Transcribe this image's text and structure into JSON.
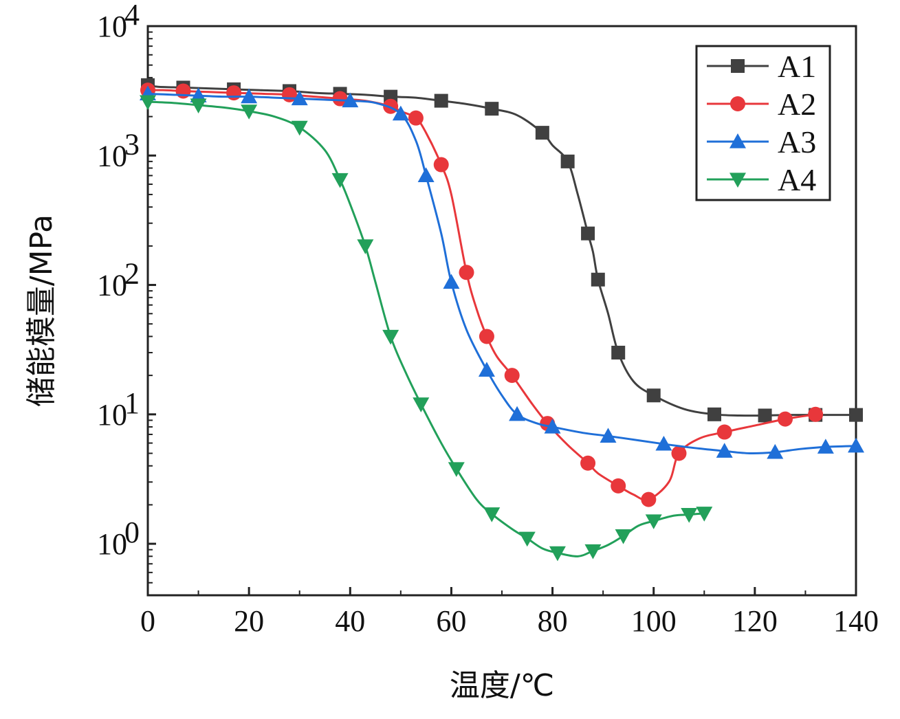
{
  "chart_data": {
    "type": "line",
    "title": "",
    "xlabel": "温度/℃",
    "ylabel": "储能模量/MPa",
    "y_scale": "log",
    "xlim": [
      0,
      140
    ],
    "ylim": [
      0.4,
      10000
    ],
    "x_ticks": [
      {
        "value": 0,
        "label": "0"
      },
      {
        "value": 20,
        "label": "20"
      },
      {
        "value": 40,
        "label": "40"
      },
      {
        "value": 60,
        "label": "60"
      },
      {
        "value": 80,
        "label": "80"
      },
      {
        "value": 100,
        "label": "100"
      },
      {
        "value": 120,
        "label": "120"
      },
      {
        "value": 140,
        "label": "140"
      }
    ],
    "y_ticks": [
      {
        "value": 1,
        "base": "10",
        "exp": "0"
      },
      {
        "value": 10,
        "base": "10",
        "exp": "1"
      },
      {
        "value": 100,
        "base": "10",
        "exp": "2"
      },
      {
        "value": 1000,
        "base": "10",
        "exp": "3"
      },
      {
        "value": 10000,
        "base": "10",
        "exp": "4"
      }
    ],
    "grid": false,
    "legend_position": "top-right",
    "series": [
      {
        "name": "A1",
        "color": "#404040",
        "marker": "square",
        "x": [
          0,
          2,
          7,
          12,
          17,
          22,
          28,
          33,
          38,
          43,
          48,
          53,
          58,
          63,
          68,
          73,
          78,
          80,
          83,
          85,
          87,
          88,
          89,
          91,
          93,
          96,
          100,
          106,
          112,
          117,
          122,
          127,
          132,
          137,
          140
        ],
        "y": [
          3500,
          3400,
          3350,
          3300,
          3250,
          3200,
          3150,
          3050,
          3000,
          2950,
          2850,
          2800,
          2650,
          2500,
          2300,
          2050,
          1500,
          1200,
          900,
          500,
          250,
          180,
          110,
          60,
          30,
          18,
          14,
          11,
          10,
          9.8,
          9.8,
          9.9,
          9.9,
          9.9,
          9.9
        ]
      },
      {
        "name": "A2",
        "color": "#e8373b",
        "marker": "circle",
        "x": [
          0,
          3,
          7,
          12,
          17,
          23,
          28,
          33,
          38,
          43,
          48,
          50,
          53,
          55,
          58,
          60,
          63,
          65,
          67,
          69,
          72,
          76,
          79,
          83,
          87,
          89,
          93,
          96,
          99,
          103,
          105,
          109,
          114,
          120,
          126,
          132
        ],
        "y": [
          3200,
          3200,
          3150,
          3100,
          3050,
          3000,
          2950,
          2850,
          2750,
          2650,
          2400,
          2200,
          1950,
          1500,
          850,
          500,
          125,
          65,
          40,
          28,
          20,
          12,
          8.5,
          5.8,
          4.2,
          3.5,
          2.8,
          2.4,
          2.2,
          3,
          5,
          6.5,
          7.3,
          8.2,
          9.2,
          10
        ]
      },
      {
        "name": "A3",
        "color": "#1f6fd8",
        "marker": "triangle-up",
        "x": [
          0,
          5,
          10,
          15,
          20,
          25,
          30,
          35,
          40,
          45,
          50,
          53,
          55,
          58,
          60,
          63,
          67,
          70,
          73,
          77,
          80,
          86,
          91,
          97,
          102,
          108,
          114,
          119,
          124,
          129,
          134,
          140
        ],
        "y": [
          3000,
          2950,
          2900,
          2850,
          2850,
          2800,
          2750,
          2700,
          2650,
          2550,
          2100,
          1300,
          700,
          250,
          105,
          45,
          22,
          14,
          10,
          8.5,
          8,
          7.2,
          6.8,
          6.3,
          5.9,
          5.5,
          5.2,
          5,
          5.1,
          5.4,
          5.6,
          5.7
        ]
      },
      {
        "name": "A4",
        "color": "#22a05a",
        "marker": "triangle-down",
        "x": [
          0,
          5,
          10,
          15,
          20,
          25,
          30,
          35,
          38,
          40,
          43,
          45,
          48,
          51,
          54,
          58,
          61,
          65,
          68,
          72,
          75,
          78,
          81,
          85,
          88,
          91,
          94,
          97,
          100,
          104,
          107,
          110
        ],
        "y": [
          2600,
          2550,
          2450,
          2350,
          2200,
          2000,
          1650,
          1100,
          650,
          420,
          200,
          105,
          40,
          21,
          12,
          6,
          3.8,
          2.2,
          1.7,
          1.3,
          1.1,
          0.92,
          0.85,
          0.8,
          0.88,
          0.98,
          1.15,
          1.38,
          1.5,
          1.65,
          1.68,
          1.72
        ]
      }
    ]
  }
}
